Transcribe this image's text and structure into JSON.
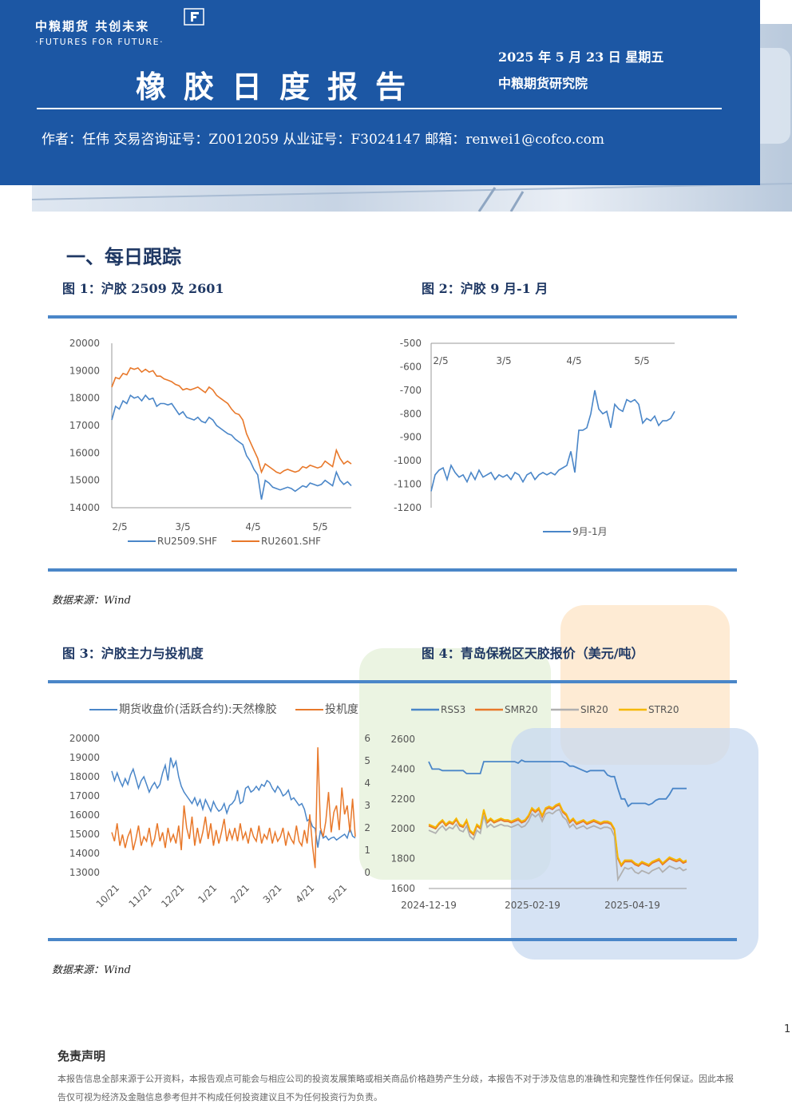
{
  "header": {
    "logo_cn": "中粮期货  共创未来",
    "logo_en": "·FUTURES FOR FUTURE·",
    "title": "橡胶日度报告",
    "date": "2025 年 5 月 23 日  星期五",
    "institute": "中粮期货研究院",
    "author_line": "作者：任伟   交易咨询证号：Z0012059   从业证号：F3024147   邮箱：renwei1@cofco.com"
  },
  "section_title": "一、每日跟踪",
  "figures": {
    "fig1_title": "图 1：沪胶 2509 及 2601",
    "fig2_title": "图 2：沪胶 9 月-1 月",
    "fig3_title": "图 3：沪胶主力与投机度",
    "fig4_title": "图 4：青岛保税区天胶报价（美元/吨）"
  },
  "sources": {
    "source1": "数据来源：Wind",
    "source2": "数据来源：Wind"
  },
  "page_number": "1",
  "disclaimer": {
    "title": "免责声明",
    "text": "本报告信息全部来源于公开资料，本报告观点可能会与相应公司的投资发展策略或相关商品价格趋势产生分歧，本报告不对于涉及信息的准确性和完整性作任何保证。因此本报告仅可视为经济及金融信息参考但并不构成任何投资建议且不为任何投资行为负责。"
  },
  "colors": {
    "header_blue": "#1c57a4",
    "rule_blue": "#4a86c8",
    "series_blue": "#4a86c8",
    "series_orange": "#e8782a",
    "series_gray": "#b0b0b0",
    "series_yellow": "#f5b800"
  },
  "chart_data": [
    {
      "id": "fig1",
      "type": "line",
      "x_ticks": [
        "2/5",
        "3/5",
        "4/5",
        "5/5"
      ],
      "ylim": [
        14000,
        20000
      ],
      "y_ticks": [
        "20000",
        "19000",
        "18000",
        "17000",
        "16000",
        "15000",
        "14000"
      ],
      "series": [
        {
          "name": "RU2509.SHF",
          "color": "#4a86c8",
          "values": [
            17200,
            17700,
            17600,
            17900,
            17800,
            18100,
            18000,
            18050,
            17900,
            18100,
            17950,
            18000,
            17700,
            17800,
            17800,
            17750,
            17800,
            17600,
            17400,
            17500,
            17300,
            17250,
            17200,
            17300,
            17150,
            17100,
            17300,
            17200,
            17000,
            16900,
            16800,
            16700,
            16650,
            16500,
            16400,
            16300,
            15900,
            15700,
            15400,
            15200,
            14300,
            15000,
            14900,
            14750,
            14700,
            14650,
            14700,
            14750,
            14700,
            14600,
            14700,
            14800,
            14750,
            14900,
            14850,
            14800,
            14850,
            15000,
            14900,
            14800,
            15300,
            15000,
            14850,
            14950,
            14800
          ]
        },
        {
          "name": "RU2601.SHF",
          "color": "#e8782a",
          "values": [
            18400,
            18750,
            18700,
            18900,
            18850,
            19100,
            19050,
            19100,
            18950,
            19050,
            18950,
            19000,
            18800,
            18800,
            18700,
            18650,
            18600,
            18500,
            18450,
            18300,
            18350,
            18300,
            18350,
            18400,
            18300,
            18200,
            18400,
            18300,
            18100,
            18000,
            17900,
            17800,
            17600,
            17450,
            17400,
            17200,
            16700,
            16400,
            16100,
            15800,
            15300,
            15600,
            15500,
            15400,
            15300,
            15250,
            15350,
            15400,
            15350,
            15300,
            15350,
            15500,
            15450,
            15550,
            15500,
            15450,
            15500,
            15700,
            15600,
            15500,
            16100,
            15800,
            15600,
            15700,
            15600
          ]
        }
      ]
    },
    {
      "id": "fig2",
      "type": "line",
      "x_ticks": [
        "2/5",
        "3/5",
        "4/5",
        "5/5"
      ],
      "ylim": [
        -1200,
        -500
      ],
      "y_ticks": [
        "-500",
        "-600",
        "-700",
        "-800",
        "-900",
        "-1000",
        "-1100",
        "-1200"
      ],
      "series": [
        {
          "name": "9月-1月",
          "color": "#4a86c8",
          "values": [
            -1130,
            -1060,
            -1040,
            -1030,
            -1080,
            -1020,
            -1050,
            -1070,
            -1060,
            -1090,
            -1050,
            -1080,
            -1040,
            -1070,
            -1060,
            -1050,
            -1080,
            -1060,
            -1070,
            -1060,
            -1080,
            -1050,
            -1060,
            -1090,
            -1060,
            -1050,
            -1080,
            -1060,
            -1050,
            -1060,
            -1050,
            -1060,
            -1040,
            -1030,
            -1020,
            -960,
            -1050,
            -870,
            -870,
            -860,
            -800,
            -700,
            -780,
            -800,
            -790,
            -860,
            -760,
            -780,
            -790,
            -740,
            -750,
            -740,
            -760,
            -840,
            -820,
            -830,
            -810,
            -850,
            -830,
            -830,
            -820,
            -790
          ]
        }
      ]
    },
    {
      "id": "fig3",
      "type": "line",
      "x_ticks": [
        "10/21",
        "11/21",
        "12/21",
        "1/21",
        "2/21",
        "3/21",
        "4/21",
        "5/21"
      ],
      "ylim": [
        13000,
        20000
      ],
      "y_ticks": [
        "20000",
        "19000",
        "18000",
        "17000",
        "16000",
        "15000",
        "14000",
        "13000"
      ],
      "y2lim": [
        0,
        6
      ],
      "y2_ticks": [
        "6",
        "5",
        "4",
        "3",
        "2",
        "1",
        "0"
      ],
      "legend": [
        "期货收盘价(活跃合约):天然橡胶",
        "投机度"
      ],
      "series": [
        {
          "name": "期货收盘价(活跃合约):天然橡胶",
          "axis": "left",
          "color": "#4a86c8",
          "values": [
            18300,
            17800,
            18200,
            17800,
            17500,
            17900,
            17600,
            18100,
            18400,
            17900,
            17400,
            17800,
            18000,
            17600,
            17200,
            17500,
            17700,
            17400,
            17600,
            18200,
            18600,
            17800,
            19000,
            18500,
            18800,
            18000,
            17500,
            17200,
            17000,
            16800,
            16600,
            16900,
            16500,
            16800,
            16300,
            16800,
            16500,
            16200,
            16700,
            16400,
            16200,
            16300,
            16600,
            16100,
            16500,
            16600,
            16800,
            17300,
            16600,
            16700,
            17400,
            17500,
            17200,
            17300,
            17500,
            17300,
            17600,
            17500,
            17800,
            17700,
            17400,
            17200,
            17500,
            17300,
            17000,
            17100,
            17300,
            16800,
            16900,
            16700,
            16500,
            16600,
            16300,
            15700,
            15800,
            15400,
            15300,
            14300,
            15200,
            14800,
            14900,
            14700,
            14800,
            14850,
            14700,
            14800,
            14900,
            15000,
            14800,
            15300,
            14900,
            14800
          ]
        },
        {
          "name": "投机度",
          "axis": "right",
          "color": "#e8782a",
          "values": [
            1.8,
            1.4,
            2.2,
            1.2,
            1.7,
            1.1,
            1.6,
            1.9,
            1.0,
            1.5,
            2.1,
            1.2,
            1.6,
            1.4,
            2.0,
            1.2,
            1.5,
            2.2,
            1.4,
            1.8,
            1.1,
            2.0,
            1.4,
            1.7,
            1.3,
            2.1,
            1.0,
            3.0,
            2.0,
            1.5,
            2.5,
            1.2,
            2.0,
            1.3,
            1.8,
            2.5,
            1.5,
            2.2,
            1.2,
            1.9,
            1.3,
            1.8,
            2.4,
            1.4,
            1.9,
            1.5,
            2.0,
            1.4,
            2.2,
            1.5,
            1.8,
            1.3,
            2.0,
            1.6,
            1.4,
            2.1,
            1.3,
            1.7,
            1.5,
            2.0,
            1.3,
            1.8,
            1.4,
            1.6,
            2.0,
            1.2,
            1.8,
            1.5,
            1.3,
            2.1,
            1.4,
            1.2,
            1.9,
            1.3,
            2.6,
            1.2,
            0.2,
            5.6,
            2.0,
            1.6,
            2.3,
            3.6,
            1.8,
            2.7,
            3.0,
            1.9,
            3.8,
            2.6,
            3.0,
            1.8,
            3.3,
            1.6
          ]
        }
      ]
    },
    {
      "id": "fig4",
      "type": "line",
      "x_ticks": [
        "2024-12-19",
        "2025-02-19",
        "2025-04-19"
      ],
      "ylim": [
        1600,
        2600
      ],
      "y_ticks": [
        "2600",
        "2400",
        "2200",
        "2000",
        "1800",
        "1600"
      ],
      "legend": [
        "RSS3",
        "SMR20",
        "SIR20",
        "STR20"
      ],
      "series": [
        {
          "name": "RSS3",
          "color": "#4a86c8",
          "values": [
            2450,
            2400,
            2400,
            2400,
            2390,
            2390,
            2390,
            2390,
            2390,
            2390,
            2390,
            2370,
            2370,
            2370,
            2370,
            2370,
            2450,
            2450,
            2450,
            2450,
            2450,
            2450,
            2450,
            2450,
            2450,
            2450,
            2440,
            2460,
            2450,
            2450,
            2450,
            2450,
            2450,
            2450,
            2450,
            2450,
            2450,
            2450,
            2450,
            2450,
            2440,
            2420,
            2420,
            2410,
            2400,
            2390,
            2380,
            2390,
            2390,
            2390,
            2390,
            2390,
            2360,
            2350,
            2350,
            2270,
            2200,
            2200,
            2150,
            2170,
            2170,
            2170,
            2170,
            2170,
            2160,
            2170,
            2190,
            2200,
            2200,
            2200,
            2230,
            2270,
            2270,
            2270,
            2270,
            2270
          ]
        },
        {
          "name": "SMR20",
          "color": "#e8782a",
          "values": [
            2020,
            2010,
            2000,
            2030,
            2050,
            2020,
            2040,
            2030,
            2060,
            2020,
            2010,
            2050,
            1980,
            1960,
            2020,
            2000,
            2120,
            2040,
            2060,
            2040,
            2050,
            2060,
            2050,
            2050,
            2040,
            2050,
            2060,
            2040,
            2050,
            2080,
            2130,
            2110,
            2130,
            2080,
            2130,
            2140,
            2130,
            2150,
            2160,
            2110,
            2090,
            2040,
            2060,
            2030,
            2040,
            2050,
            2030,
            2040,
            2050,
            2040,
            2030,
            2040,
            2040,
            2030,
            1990,
            1800,
            1750,
            1780,
            1780,
            1780,
            1760,
            1750,
            1770,
            1760,
            1750,
            1770,
            1780,
            1790,
            1760,
            1780,
            1800,
            1790,
            1780,
            1790,
            1770,
            1780
          ]
        },
        {
          "name": "SIR20",
          "color": "#b0b0b0",
          "values": [
            1990,
            1980,
            1970,
            2000,
            2020,
            1990,
            2010,
            2000,
            2030,
            1990,
            1980,
            2020,
            1950,
            1930,
            1990,
            1970,
            2090,
            2010,
            2030,
            2010,
            2020,
            2030,
            2020,
            2020,
            2010,
            2020,
            2030,
            2010,
            2020,
            2050,
            2100,
            2080,
            2100,
            2050,
            2100,
            2110,
            2100,
            2120,
            2130,
            2080,
            2060,
            2010,
            2030,
            2000,
            2010,
            2020,
            2000,
            2010,
            2020,
            2010,
            2000,
            2010,
            2010,
            2000,
            1950,
            1660,
            1700,
            1740,
            1730,
            1740,
            1710,
            1700,
            1720,
            1710,
            1700,
            1720,
            1730,
            1740,
            1710,
            1730,
            1750,
            1740,
            1730,
            1740,
            1720,
            1730
          ]
        },
        {
          "name": "STR20",
          "color": "#f5b800",
          "values": [
            2030,
            2020,
            2010,
            2040,
            2060,
            2030,
            2050,
            2040,
            2070,
            2030,
            2020,
            2060,
            1990,
            1970,
            2030,
            2010,
            2130,
            2050,
            2070,
            2050,
            2060,
            2070,
            2060,
            2060,
            2050,
            2060,
            2070,
            2050,
            2060,
            2090,
            2140,
            2120,
            2140,
            2090,
            2140,
            2150,
            2140,
            2160,
            2170,
            2120,
            2100,
            2050,
            2070,
            2040,
            2050,
            2060,
            2040,
            2050,
            2060,
            2050,
            2040,
            2050,
            2050,
            2040,
            2000,
            1810,
            1760,
            1790,
            1790,
            1790,
            1770,
            1760,
            1780,
            1770,
            1760,
            1780,
            1790,
            1800,
            1770,
            1790,
            1810,
            1800,
            1790,
            1800,
            1780,
            1790
          ]
        }
      ]
    }
  ]
}
